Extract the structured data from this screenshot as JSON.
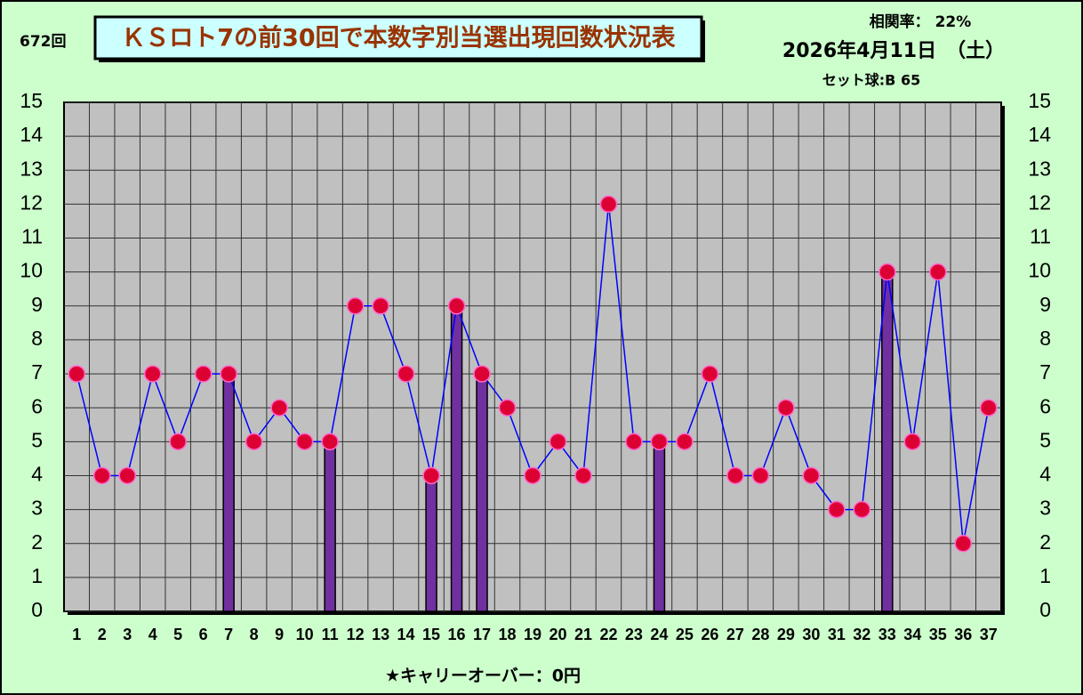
{
  "chart_data": {
    "type": "combo",
    "draw_number": "672回",
    "title": "ＫＳロト7の前30回で本数字別当選出現回数状況表",
    "correlation": "相関率：  22%",
    "date": "2026年4月11日　（土）",
    "set_ball": "セット球:B 65",
    "footer": "★キャリーオーバー：0円",
    "categories": [
      "1",
      "2",
      "3",
      "4",
      "5",
      "6",
      "7",
      "8",
      "9",
      "10",
      "11",
      "12",
      "13",
      "14",
      "15",
      "16",
      "17",
      "18",
      "19",
      "20",
      "21",
      "22",
      "23",
      "24",
      "25",
      "26",
      "27",
      "28",
      "29",
      "30",
      "31",
      "32",
      "33",
      "34",
      "35",
      "36",
      "37"
    ],
    "series": [
      {
        "type": "bar",
        "color": "#7030a0",
        "values": [
          null,
          null,
          null,
          null,
          null,
          null,
          7,
          null,
          null,
          null,
          5,
          null,
          null,
          null,
          4,
          9,
          7,
          null,
          null,
          null,
          null,
          null,
          null,
          5,
          null,
          null,
          null,
          null,
          null,
          null,
          null,
          null,
          10,
          null,
          null,
          null,
          null
        ]
      },
      {
        "type": "line",
        "color": "#0000ff",
        "marker_color": "#dd0033",
        "values": [
          7,
          4,
          4,
          7,
          5,
          7,
          7,
          5,
          6,
          5,
          5,
          9,
          9,
          7,
          4,
          9,
          7,
          6,
          4,
          5,
          4,
          12,
          5,
          5,
          5,
          7,
          4,
          4,
          6,
          4,
          3,
          3,
          10,
          5,
          10,
          2,
          6
        ]
      }
    ],
    "ylim": [
      0,
      15
    ],
    "yticks": [
      0,
      1,
      2,
      3,
      4,
      5,
      6,
      7,
      8,
      9,
      10,
      11,
      12,
      13,
      14,
      15
    ],
    "y2lim": [
      0,
      15
    ],
    "y2ticks": [
      0,
      1,
      2,
      3,
      4,
      5,
      6,
      7,
      8,
      9,
      10,
      11,
      12,
      13,
      14,
      15
    ],
    "grid": true
  }
}
